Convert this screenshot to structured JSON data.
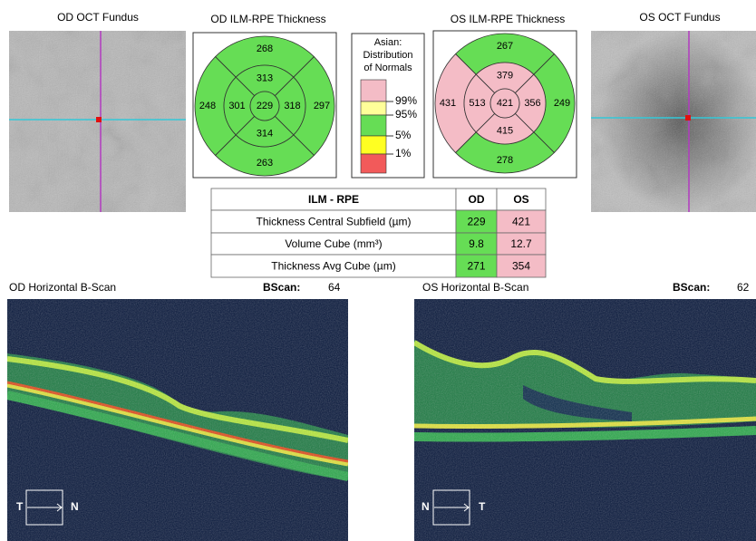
{
  "fundus": [
    {
      "title": "OD OCT Fundus"
    },
    {
      "title": "OS OCT Fundus"
    }
  ],
  "maps": [
    {
      "title": "OD ILM-RPE Thickness",
      "center": {
        "value": "229",
        "color": "#66dd55"
      },
      "inner": [
        {
          "value": "313",
          "color": "#66dd55"
        },
        {
          "value": "318",
          "color": "#66dd55"
        },
        {
          "value": "314",
          "color": "#66dd55"
        },
        {
          "value": "301",
          "color": "#66dd55"
        }
      ],
      "outer": [
        {
          "value": "268",
          "color": "#66dd55"
        },
        {
          "value": "297",
          "color": "#66dd55"
        },
        {
          "value": "263",
          "color": "#66dd55"
        },
        {
          "value": "248",
          "color": "#66dd55"
        }
      ]
    },
    {
      "title": "OS ILM-RPE Thickness",
      "center": {
        "value": "421",
        "color": "#f4bcc6"
      },
      "inner": [
        {
          "value": "379",
          "color": "#f4bcc6"
        },
        {
          "value": "356",
          "color": "#f4bcc6"
        },
        {
          "value": "415",
          "color": "#f4bcc6"
        },
        {
          "value": "513",
          "color": "#f4bcc6"
        }
      ],
      "outer": [
        {
          "value": "267",
          "color": "#66dd55"
        },
        {
          "value": "249",
          "color": "#66dd55"
        },
        {
          "value": "278",
          "color": "#66dd55"
        },
        {
          "value": "431",
          "color": "#f4bcc6"
        }
      ]
    }
  ],
  "legend": {
    "title": [
      "Asian:",
      "Distribution",
      "of Normals"
    ],
    "labels": [
      "99%",
      "95%",
      "5%",
      "1%"
    ],
    "colors": [
      "#f4bcc6",
      "#ffff99",
      "#66dd55",
      "#ffff22",
      "#f25a5a"
    ]
  },
  "table": {
    "header": [
      "ILM - RPE",
      "OD",
      "OS"
    ],
    "rows": [
      [
        "Thickness Central Subfield (µm)",
        "229",
        "421"
      ],
      [
        "Volume Cube (mm³)",
        "9.8",
        "12.7"
      ],
      [
        "Thickness Avg Cube (µm)",
        "271",
        "354"
      ]
    ]
  },
  "bscans": [
    {
      "title": "OD Horizontal B-Scan",
      "bscan_label": "BScan:",
      "bscan_number": "64",
      "left": "T",
      "right": "N"
    },
    {
      "title": "OS Horizontal B-Scan",
      "bscan_label": "BScan:",
      "bscan_number": "62",
      "left": "N",
      "right": "T"
    }
  ]
}
